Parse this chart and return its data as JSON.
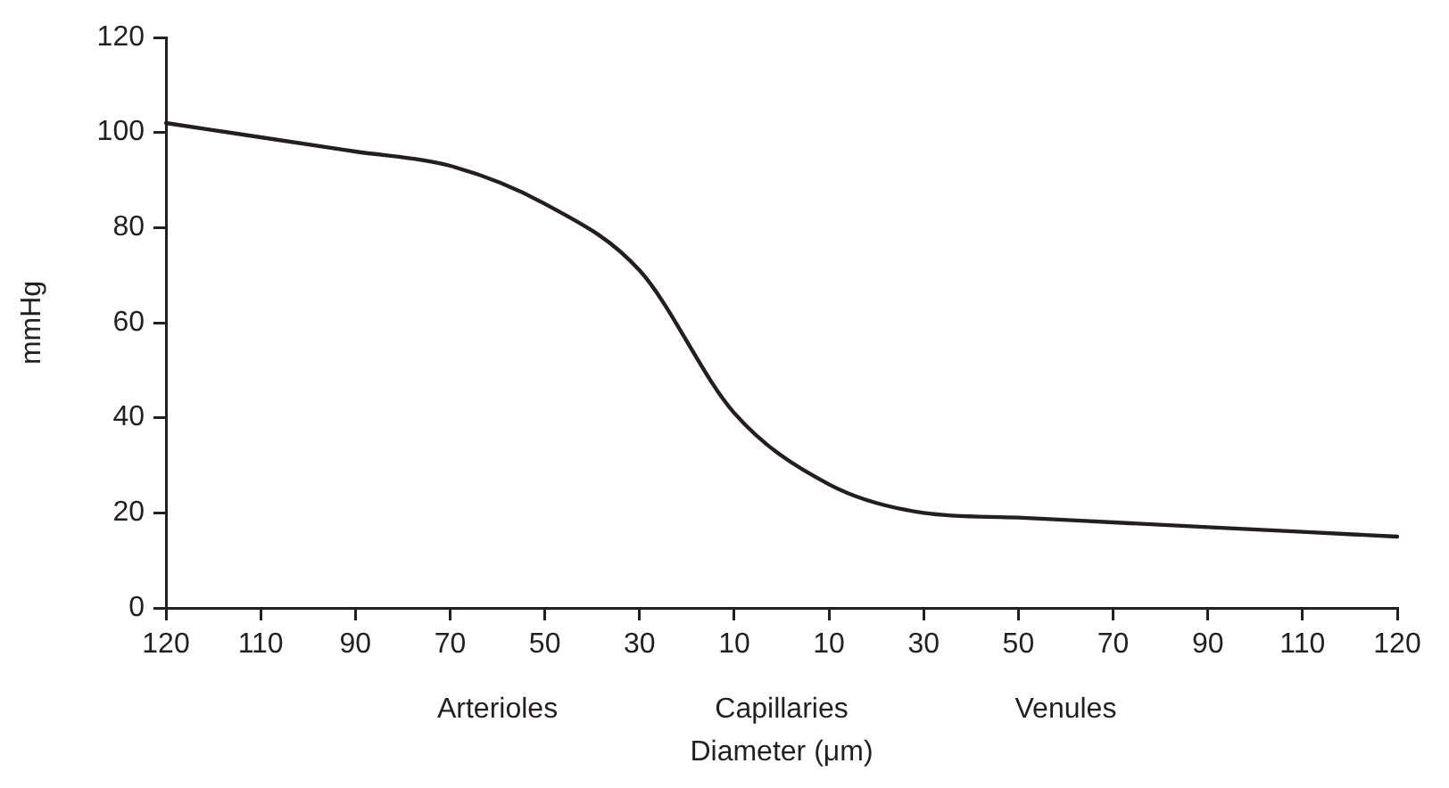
{
  "chart_data": {
    "type": "line",
    "ylabel": "mmHg",
    "xlabel": "Diameter (μm)",
    "categories": [
      "120",
      "110",
      "90",
      "70",
      "50",
      "30",
      "10",
      "10",
      "30",
      "50",
      "70",
      "90",
      "110",
      "120"
    ],
    "series": [
      {
        "color": "#231f20",
        "values": [
          102,
          99,
          96,
          93,
          85,
          71,
          41,
          26,
          20,
          19,
          18,
          17,
          16,
          15
        ]
      }
    ],
    "ylim": [
      0,
      120
    ],
    "yticks": [
      0,
      20,
      40,
      60,
      80,
      100,
      120
    ],
    "grid": false,
    "legend": false,
    "marker": "none",
    "line_style": "solid",
    "annotations": [
      "Arterioles",
      "Capillaries",
      "Venules"
    ]
  }
}
